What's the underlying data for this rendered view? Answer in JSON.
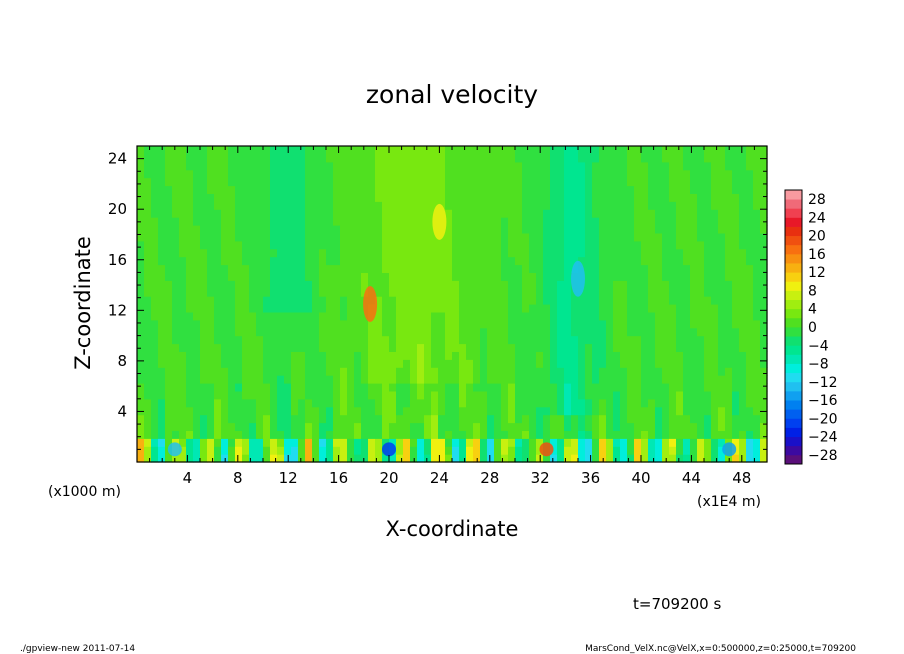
{
  "chart_data": {
    "type": "heatmap",
    "title": "zonal velocity",
    "xlabel": "X-coordinate",
    "ylabel": "Z-coordinate",
    "x_unit": "(x1E4 m)",
    "y_unit": "(x1000 m)",
    "xlim": [
      0,
      50
    ],
    "ylim": [
      0,
      25
    ],
    "x_ticks": [
      4,
      8,
      12,
      16,
      20,
      24,
      28,
      32,
      36,
      40,
      44,
      48
    ],
    "y_ticks": [
      4,
      8,
      12,
      16,
      20,
      24
    ],
    "colorbar": {
      "labels": [
        28,
        24,
        20,
        16,
        12,
        8,
        4,
        0,
        -4,
        -8,
        -12,
        -16,
        -20,
        -24,
        -28
      ],
      "levels": [
        -30,
        -28,
        -26,
        -24,
        -22,
        -20,
        -18,
        -16,
        -14,
        -12,
        -10,
        -8,
        -6,
        -4,
        -2,
        0,
        2,
        4,
        6,
        8,
        10,
        12,
        14,
        16,
        18,
        20,
        22,
        24,
        26,
        28,
        30
      ],
      "colors": [
        "#5a0f7a",
        "#3c0aa0",
        "#1a10c8",
        "#0020e6",
        "#0040f0",
        "#0060f0",
        "#0080f0",
        "#10a0f0",
        "#20c0f0",
        "#20dcf0",
        "#00eedc",
        "#00e8b4",
        "#00e690",
        "#10e070",
        "#30e040",
        "#50e020",
        "#78e810",
        "#a0ee10",
        "#c8f010",
        "#f0f010",
        "#f8d010",
        "#f8b010",
        "#f89010",
        "#f87010",
        "#f05010",
        "#e83010",
        "#e81828",
        "#f04050",
        "#f06a78",
        "#f89aa0"
      ]
    },
    "grid": false,
    "legend": "colorbar-right",
    "anomalies": [
      {
        "x": 18.5,
        "z": 12.5,
        "value": 16
      },
      {
        "x": 24.0,
        "z": 19.0,
        "value": 8
      },
      {
        "x": 35.0,
        "z": 14.5,
        "value": -14
      },
      {
        "x": 32.5,
        "z": 1.0,
        "value": 18
      },
      {
        "x": 20.0,
        "z": 1.0,
        "value": -22
      },
      {
        "x": 3.0,
        "z": 1.0,
        "value": -14
      },
      {
        "x": 47.0,
        "z": 1.0,
        "value": -16
      }
    ]
  },
  "time_label": "t=709200 s",
  "footer": {
    "left": "./gpview-new   2011-07-14",
    "right": "MarsCond_VelX.nc@VelX,x=0:500000,z=0:25000,t=709200"
  }
}
